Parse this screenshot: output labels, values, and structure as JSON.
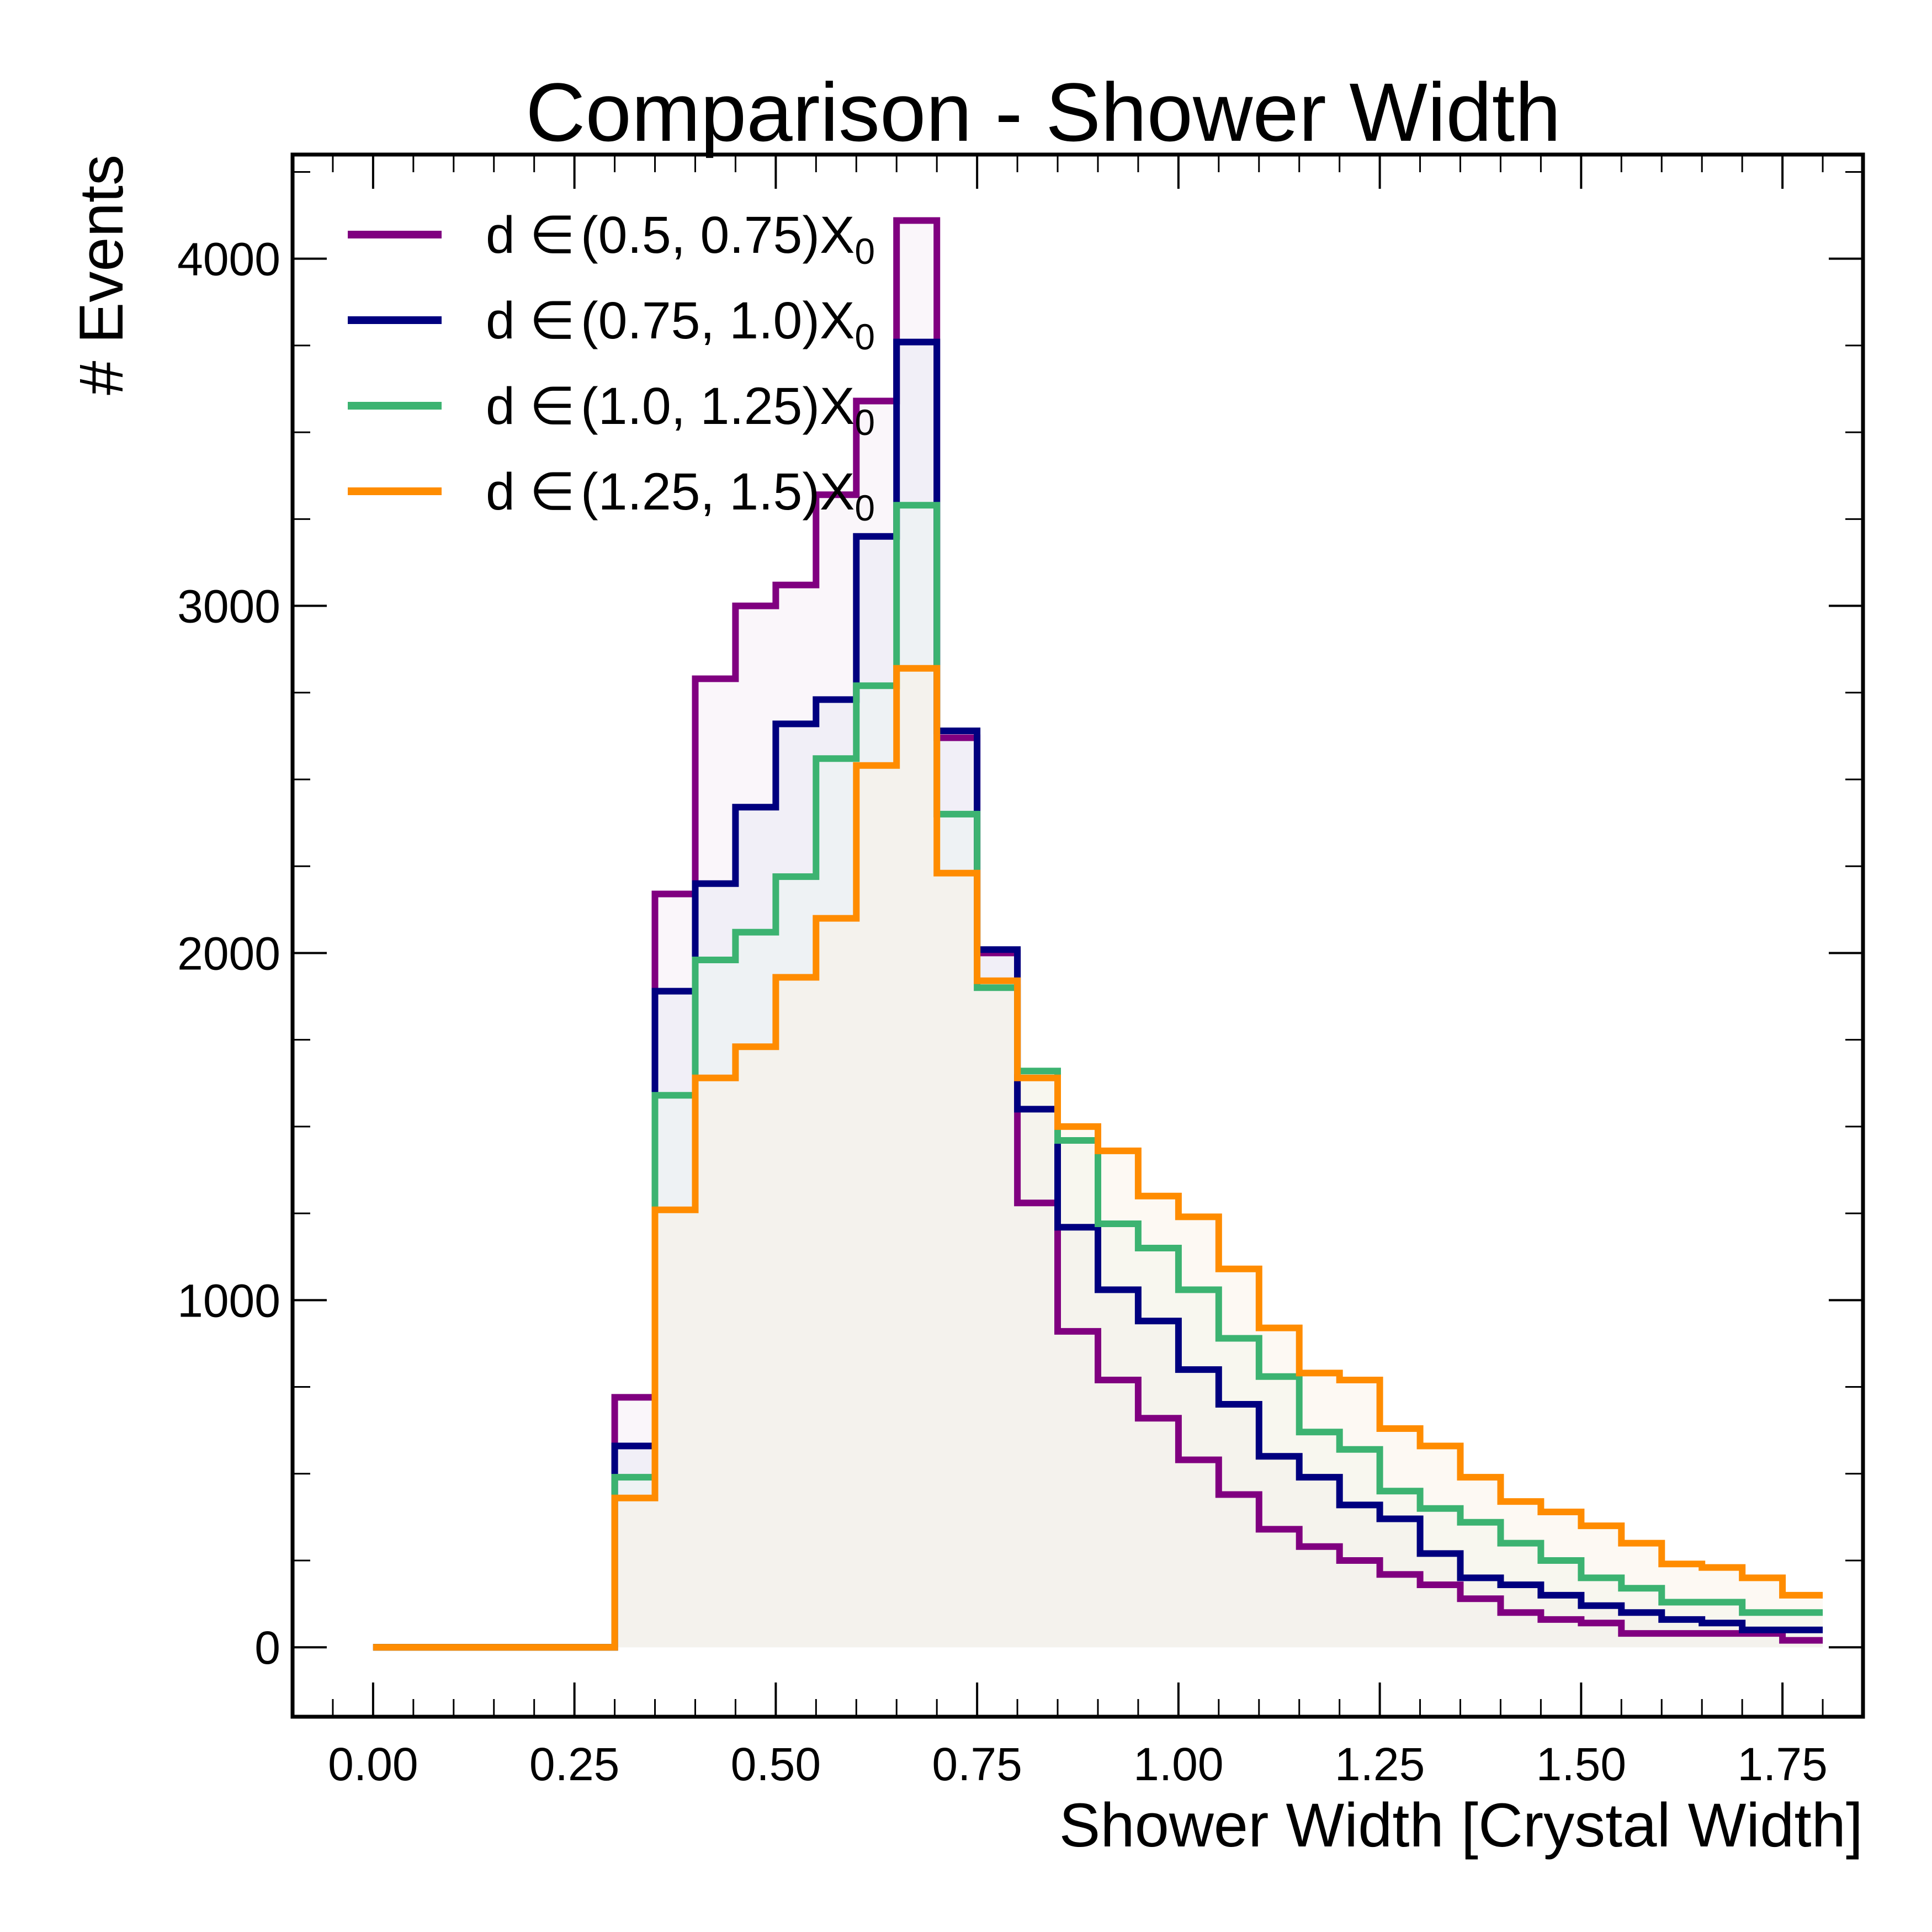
{
  "chart_data": {
    "type": "histogram",
    "title": "Comparison - Shower Width",
    "xlabel": "Shower Width [Crystal Width]",
    "ylabel": "# Events",
    "xlim": [
      -0.1,
      1.85
    ],
    "ylim": [
      -200,
      4300
    ],
    "xticks": [
      "0.00",
      "0.25",
      "0.50",
      "0.75",
      "1.00",
      "1.25",
      "1.50",
      "1.75"
    ],
    "yticks": [
      "0",
      "1000",
      "2000",
      "3000",
      "4000"
    ],
    "x_tick_values": [
      0.0,
      0.25,
      0.5,
      0.75,
      1.0,
      1.25,
      1.5,
      1.75
    ],
    "y_tick_values": [
      0,
      1000,
      2000,
      3000,
      4000
    ],
    "grid": false,
    "legend_position": "top-left",
    "bin_width": 0.05,
    "bin_starts": [
      0.0,
      0.05,
      0.1,
      0.15,
      0.2,
      0.25,
      0.3,
      0.35,
      0.4,
      0.45,
      0.5,
      0.55,
      0.6,
      0.65,
      0.7,
      0.75,
      0.8,
      0.85,
      0.9,
      0.95,
      1.0,
      1.05,
      1.1,
      1.15,
      1.2,
      1.25,
      1.3,
      1.35,
      1.4,
      1.45,
      1.5,
      1.55,
      1.6,
      1.65,
      1.7,
      1.75
    ],
    "series": [
      {
        "name": "(0.5, 0.75)",
        "color": "#800080",
        "fill": "#f4eaf4",
        "values": [
          0,
          0,
          0,
          0,
          0,
          0,
          720,
          2170,
          2790,
          3000,
          3060,
          3320,
          3590,
          4110,
          2620,
          2000,
          1280,
          910,
          770,
          660,
          540,
          440,
          340,
          290,
          250,
          210,
          180,
          140,
          100,
          80,
          70,
          40,
          40,
          40,
          40,
          20
        ]
      },
      {
        "name": "(0.75, 1.0)",
        "color": "#00007f",
        "fill": "#e6e6f4",
        "values": [
          0,
          0,
          0,
          0,
          0,
          0,
          580,
          1890,
          2200,
          2420,
          2660,
          2730,
          3200,
          3760,
          2640,
          2010,
          1550,
          1210,
          1030,
          940,
          800,
          700,
          550,
          490,
          410,
          370,
          270,
          200,
          180,
          150,
          120,
          100,
          80,
          70,
          50,
          50
        ]
      },
      {
        "name": "(1.0, 1.25)",
        "color": "#3cb371",
        "fill": "#ebf6ef",
        "values": [
          0,
          0,
          0,
          0,
          0,
          0,
          490,
          1590,
          1980,
          2060,
          2220,
          2560,
          2770,
          3290,
          2400,
          1900,
          1660,
          1460,
          1220,
          1150,
          1030,
          890,
          780,
          620,
          570,
          450,
          400,
          360,
          300,
          250,
          200,
          170,
          130,
          130,
          100,
          100
        ]
      },
      {
        "name": "(1.25, 1.5)",
        "color": "#ff8c00",
        "fill": "#fbf1e4",
        "values": [
          0,
          0,
          0,
          0,
          0,
          0,
          430,
          1260,
          1640,
          1730,
          1930,
          2100,
          2540,
          2820,
          2230,
          1920,
          1640,
          1500,
          1430,
          1300,
          1240,
          1090,
          920,
          790,
          770,
          630,
          580,
          490,
          420,
          390,
          350,
          300,
          240,
          230,
          200,
          150
        ]
      }
    ]
  }
}
